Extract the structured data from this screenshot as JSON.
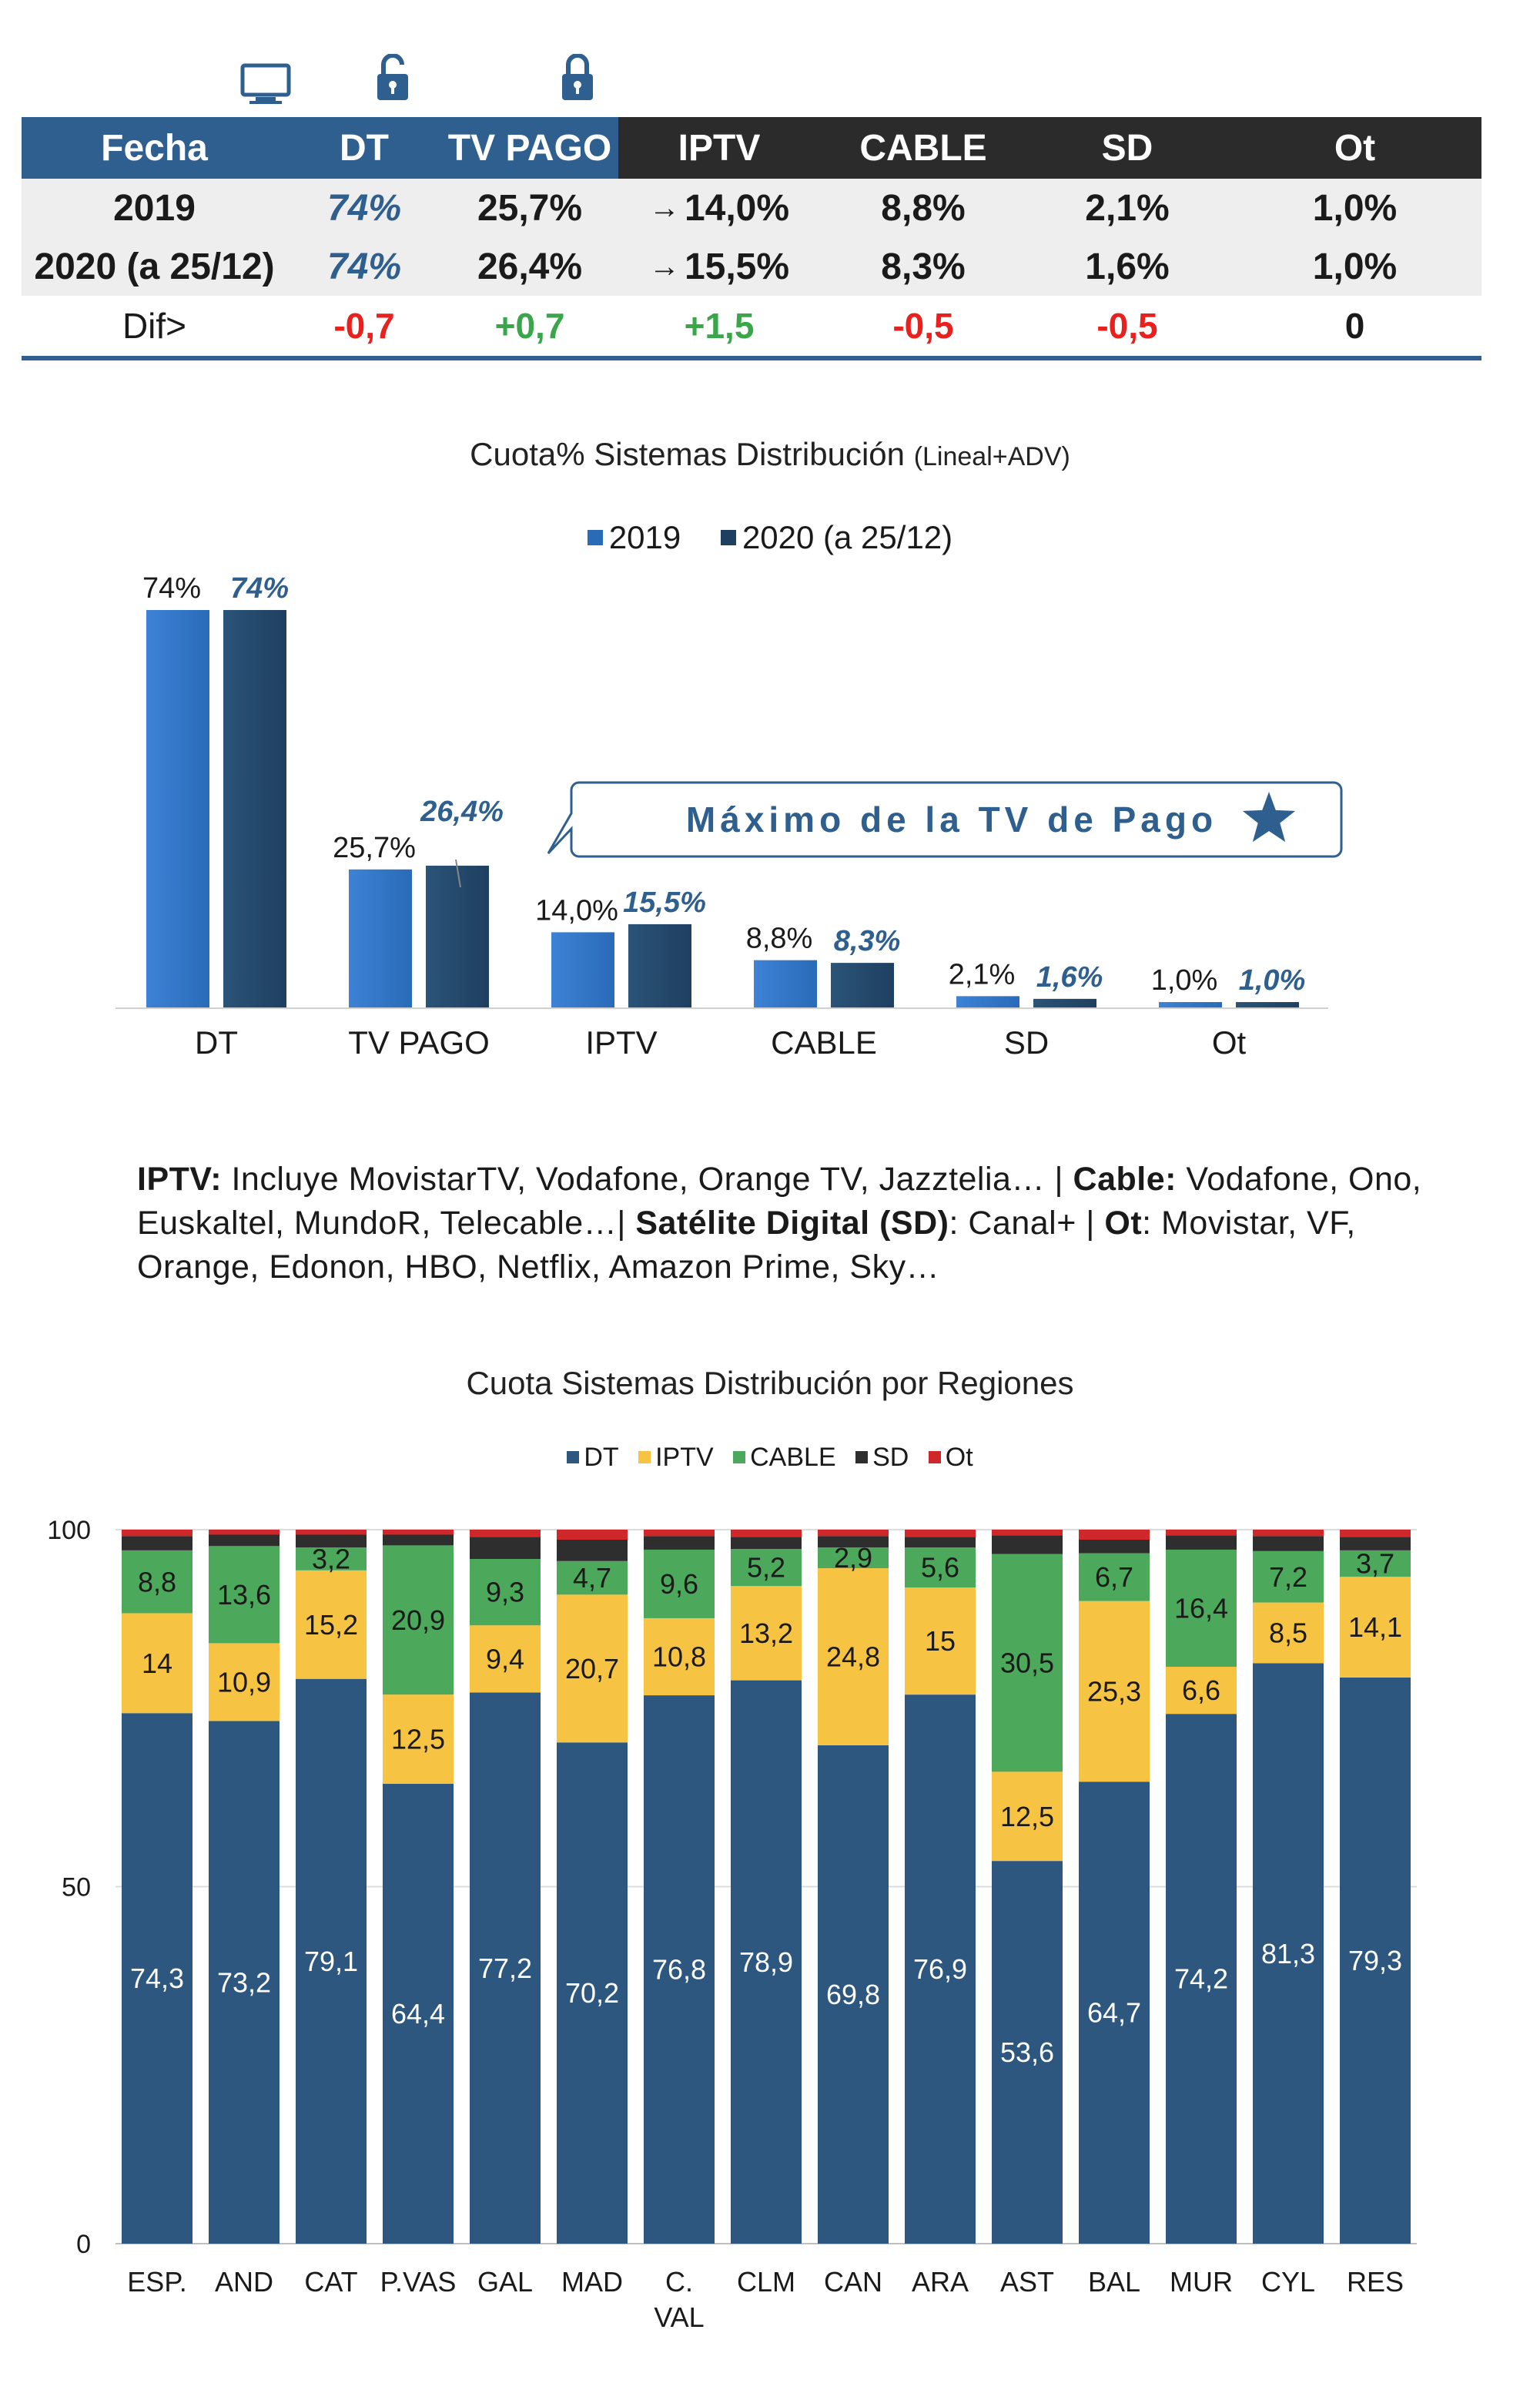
{
  "table": {
    "headers": [
      "Fecha",
      "DT",
      "TV PAGO",
      "IPTV",
      "CABLE",
      "SD",
      "Ot"
    ],
    "rows": [
      {
        "fecha": "2019",
        "dt": "74%",
        "tvpago": "25,7%",
        "iptv": "14,0%",
        "cable": "8,8%",
        "sd": "2,1%",
        "ot": "1,0%"
      },
      {
        "fecha": "2020 (a 25/12)",
        "dt": "74%",
        "tvpago": "26,4%",
        "iptv": "15,5%",
        "cable": "8,3%",
        "sd": "1,6%",
        "ot": "1,0%"
      }
    ],
    "dif": {
      "label": "Dif>",
      "dt": "-0,7",
      "tvpago": "+0,7",
      "iptv": "+1,5",
      "cable": "-0,5",
      "sd": "-0,5",
      "ot": "0"
    },
    "arrow": "→"
  },
  "note": {
    "iptv_label": "IPTV:",
    "iptv_text": " Incluye MovistarTV, Vodafone, Orange TV, Jazztelia… | ",
    "cable_label": "Cable:",
    "cable_text": " Vodafone, Ono, Euskaltel, MundoR, Telecable…| ",
    "sd_label": "Satélite Digital (SD)",
    "sd_text": ": Canal+ | ",
    "ot_label": "Ot",
    "ot_text": ": Movistar, VF, Orange, Edonon, HBO, Netflix, Amazon Prime, Sky…"
  },
  "colors": {
    "header_blue": "#2e5f8f",
    "header_dark": "#2b2b2b",
    "bar_2019": "#2a6bb8",
    "bar_2020": "#1f3f60",
    "label_2020": "#2e5f8f",
    "DT": "#2e5780",
    "IPTV": "#f6c342",
    "CABLE": "#4ca85a",
    "SD": "#2e2e2e",
    "Ot": "#d0272a",
    "red": "#e8201e",
    "green": "#3aa64a"
  },
  "chart_data": [
    {
      "type": "bar",
      "title": "Cuota% Sistemas Distribución",
      "title_small": "(Lineal+ADV)",
      "categories": [
        "DT",
        "TV PAGO",
        "IPTV",
        "CABLE",
        "SD",
        "Ot"
      ],
      "series": [
        {
          "name": "2019",
          "values": [
            74,
            25.7,
            14.0,
            8.8,
            2.1,
            1.0
          ],
          "labels": [
            "74%",
            "25,7%",
            "14,0%",
            "8,8%",
            "2,1%",
            "1,0%"
          ]
        },
        {
          "name": "2020 (a 25/12)",
          "values": [
            74,
            26.4,
            15.5,
            8.3,
            1.6,
            1.0
          ],
          "labels": [
            "74%",
            "26,4%",
            "15,5%",
            "8,3%",
            "1,6%",
            "1,0%"
          ]
        }
      ],
      "ylim": [
        0,
        74
      ],
      "annotation": "Máximo de la TV de Pago"
    },
    {
      "type": "bar",
      "stacked": true,
      "title": "Cuota Sistemas Distribución por Regiones",
      "categories": [
        "ESP.",
        "AND",
        "CAT",
        "P.VAS",
        "GAL",
        "MAD",
        "C. VAL",
        "CLM",
        "CAN",
        "ARA",
        "AST",
        "BAL",
        "MUR",
        "CYL",
        "RES"
      ],
      "category_lines": [
        [
          "ESP."
        ],
        [
          "AND"
        ],
        [
          "CAT"
        ],
        [
          "P.VAS"
        ],
        [
          "GAL"
        ],
        [
          "MAD"
        ],
        [
          "C.",
          "VAL"
        ],
        [
          "CLM"
        ],
        [
          "CAN"
        ],
        [
          "ARA"
        ],
        [
          "AST"
        ],
        [
          "BAL"
        ],
        [
          "MUR"
        ],
        [
          "CYL"
        ],
        [
          "RES"
        ]
      ],
      "series": [
        {
          "name": "DT",
          "values": [
            74.3,
            73.2,
            79.1,
            64.4,
            77.2,
            70.2,
            76.8,
            78.9,
            69.8,
            76.9,
            53.6,
            64.7,
            74.2,
            81.3,
            79.3
          ],
          "labels": [
            "74,3",
            "73,2",
            "79,1",
            "64,4",
            "77,2",
            "70,2",
            "76,8",
            "78,9",
            "69,8",
            "76,9",
            "53,6",
            "64,7",
            "74,2",
            "81,3",
            "79,3"
          ]
        },
        {
          "name": "IPTV",
          "values": [
            14,
            10.9,
            15.2,
            12.5,
            9.4,
            20.7,
            10.8,
            13.2,
            24.8,
            15,
            12.5,
            25.3,
            6.6,
            8.5,
            14.1
          ],
          "labels": [
            "14",
            "10,9",
            "15,2",
            "12,5",
            "9,4",
            "20,7",
            "10,8",
            "13,2",
            "24,8",
            "15",
            "12,5",
            "25,3",
            "6,6",
            "8,5",
            "14,1"
          ]
        },
        {
          "name": "CABLE",
          "values": [
            8.8,
            13.6,
            3.2,
            20.9,
            9.3,
            4.7,
            9.6,
            5.2,
            2.9,
            5.6,
            30.5,
            6.7,
            16.4,
            7.2,
            3.7
          ],
          "labels": [
            "8,8",
            "13,6",
            "3,2",
            "20,9",
            "9,3",
            "4,7",
            "9,6",
            "5,2",
            "2,9",
            "5,6",
            "30,5",
            "6,7",
            "16,4",
            "7,2",
            "3,7"
          ]
        },
        {
          "name": "SD",
          "values": [
            2.0,
            1.6,
            1.8,
            1.5,
            3.1,
            3.0,
            1.9,
            1.7,
            1.6,
            1.5,
            2.6,
            1.9,
            2.0,
            2.1,
            1.9
          ]
        },
        {
          "name": "Ot",
          "values": [
            0.9,
            0.7,
            0.7,
            0.7,
            1.0,
            1.4,
            0.9,
            1.0,
            0.9,
            1.0,
            0.8,
            1.4,
            0.8,
            0.9,
            1.0
          ]
        }
      ],
      "ylim": [
        0,
        100
      ],
      "yticks": [
        "0",
        "50",
        "100"
      ]
    }
  ]
}
